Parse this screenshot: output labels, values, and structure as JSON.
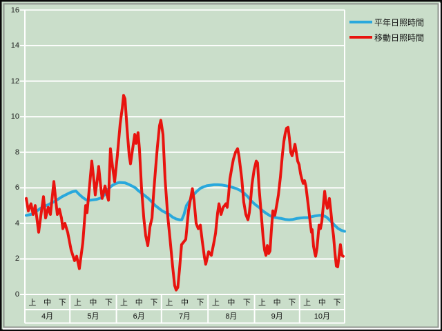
{
  "chart_data": {
    "type": "line",
    "title": "",
    "background_color": "#cadeca",
    "gridline_color": "#ffffff",
    "text_color": "#1b1b1b",
    "grid": true,
    "legend_position": "top-right",
    "y_axis": {
      "min": 0,
      "max": 16,
      "tick_step": 2,
      "tick_labels": [
        "0",
        "2",
        "4",
        "6",
        "8",
        "10",
        "12",
        "14",
        "16"
      ]
    },
    "x_axis": {
      "months": [
        "4月",
        "5月",
        "6月",
        "7月",
        "8月",
        "9月",
        "10月"
      ],
      "period_labels": [
        "上",
        "中",
        "下"
      ],
      "month_boundaries_days": [
        0,
        30,
        61,
        91,
        122,
        153,
        183,
        213
      ],
      "x_units": "days from April 1",
      "y_units": "hours"
    },
    "series": [
      {
        "name": "平年日照時間",
        "color": "#29a8dc",
        "width": 4,
        "points": [
          [
            0.9,
            4.45
          ],
          [
            4,
            4.5
          ],
          [
            6.4,
            4.6
          ],
          [
            11,
            4.88
          ],
          [
            15.6,
            5.05
          ],
          [
            20.2,
            5.25
          ],
          [
            24.8,
            5.5
          ],
          [
            29.4,
            5.7
          ],
          [
            31.7,
            5.78
          ],
          [
            34,
            5.82
          ],
          [
            36.3,
            5.62
          ],
          [
            38.6,
            5.45
          ],
          [
            40.9,
            5.32
          ],
          [
            43.2,
            5.3
          ],
          [
            47.8,
            5.35
          ],
          [
            51.5,
            5.45
          ],
          [
            53.4,
            5.65
          ],
          [
            55.2,
            5.9
          ],
          [
            58,
            6.12
          ],
          [
            60.7,
            6.25
          ],
          [
            63,
            6.3
          ],
          [
            66.7,
            6.28
          ],
          [
            69,
            6.2
          ],
          [
            71.3,
            6.1
          ],
          [
            73.6,
            6.0
          ],
          [
            75.4,
            5.85
          ],
          [
            77.7,
            5.7
          ],
          [
            80,
            5.55
          ],
          [
            82.3,
            5.4
          ],
          [
            84.6,
            5.2
          ],
          [
            86.9,
            5.0
          ],
          [
            89.2,
            4.85
          ],
          [
            91.5,
            4.7
          ],
          [
            93.8,
            4.6
          ],
          [
            96.1,
            4.5
          ],
          [
            98.4,
            4.35
          ],
          [
            100.7,
            4.25
          ],
          [
            103,
            4.2
          ],
          [
            104.5,
            4.2
          ],
          [
            106,
            4.5
          ],
          [
            107.6,
            5.0
          ],
          [
            110,
            5.3
          ],
          [
            112.3,
            5.6
          ],
          [
            114.5,
            5.8
          ],
          [
            116.9,
            5.97
          ],
          [
            119,
            6.05
          ],
          [
            121.5,
            6.12
          ],
          [
            124,
            6.15
          ],
          [
            126.1,
            6.17
          ],
          [
            128.5,
            6.17
          ],
          [
            131,
            6.16
          ],
          [
            133.5,
            6.12
          ],
          [
            136,
            6.08
          ],
          [
            138.5,
            6.02
          ],
          [
            141,
            5.95
          ],
          [
            143.5,
            5.85
          ],
          [
            146,
            5.7
          ],
          [
            148.5,
            5.5
          ],
          [
            151,
            5.25
          ],
          [
            153.5,
            5.05
          ],
          [
            156,
            4.9
          ],
          [
            158.5,
            4.7
          ],
          [
            161,
            4.55
          ],
          [
            163.5,
            4.42
          ],
          [
            166,
            4.35
          ],
          [
            168.5,
            4.3
          ],
          [
            171,
            4.27
          ],
          [
            173.5,
            4.22
          ],
          [
            176,
            4.2
          ],
          [
            178.5,
            4.22
          ],
          [
            181,
            4.27
          ],
          [
            183.5,
            4.3
          ],
          [
            186,
            4.32
          ],
          [
            188.5,
            4.32
          ],
          [
            191,
            4.37
          ],
          [
            193.5,
            4.42
          ],
          [
            196,
            4.45
          ],
          [
            198.5,
            4.45
          ],
          [
            201,
            4.35
          ],
          [
            203.5,
            4.15
          ],
          [
            206,
            3.92
          ],
          [
            208.5,
            3.72
          ],
          [
            211,
            3.6
          ],
          [
            213,
            3.55
          ]
        ]
      },
      {
        "name": "移動日照時間",
        "color": "#e8140f",
        "width": 4,
        "points": [
          [
            0.9,
            5.4
          ],
          [
            2.3,
            4.7
          ],
          [
            4.1,
            5.1
          ],
          [
            5.5,
            4.5
          ],
          [
            6.9,
            5.0
          ],
          [
            9.2,
            3.5
          ],
          [
            10.6,
            4.4
          ],
          [
            12.4,
            5.5
          ],
          [
            13.8,
            4.3
          ],
          [
            15.6,
            4.9
          ],
          [
            17,
            4.5
          ],
          [
            19.3,
            6.35
          ],
          [
            20.7,
            5.2
          ],
          [
            21.6,
            4.5
          ],
          [
            23,
            4.8
          ],
          [
            24.4,
            4.3
          ],
          [
            25.3,
            3.7
          ],
          [
            26.7,
            4.0
          ],
          [
            28.5,
            3.5
          ],
          [
            30.8,
            2.5
          ],
          [
            33.1,
            1.9
          ],
          [
            34.5,
            2.15
          ],
          [
            36.3,
            1.45
          ],
          [
            38.6,
            2.9
          ],
          [
            40.5,
            5.0
          ],
          [
            41.4,
            4.6
          ],
          [
            43.2,
            6.2
          ],
          [
            44.6,
            7.5
          ],
          [
            46,
            6.4
          ],
          [
            46.9,
            5.6
          ],
          [
            48.3,
            6.5
          ],
          [
            49.2,
            7.2
          ],
          [
            50.6,
            6.0
          ],
          [
            51.5,
            5.4
          ],
          [
            53.4,
            6.1
          ],
          [
            54.7,
            5.6
          ],
          [
            55.7,
            5.3
          ],
          [
            57,
            8.2
          ],
          [
            58.4,
            7.2
          ],
          [
            59.8,
            6.35
          ],
          [
            61.6,
            7.8
          ],
          [
            63.5,
            9.6
          ],
          [
            64.9,
            10.5
          ],
          [
            65.8,
            11.2
          ],
          [
            66.7,
            11.0
          ],
          [
            68.1,
            9.3
          ],
          [
            69.5,
            7.8
          ],
          [
            70.4,
            7.35
          ],
          [
            71.8,
            8.2
          ],
          [
            73.2,
            9.0
          ],
          [
            74.1,
            8.5
          ],
          [
            75.4,
            9.1
          ],
          [
            76.3,
            8.2
          ],
          [
            77.7,
            6.0
          ],
          [
            79.2,
            4.3
          ],
          [
            80.5,
            3.3
          ],
          [
            81.9,
            2.75
          ],
          [
            83.3,
            3.8
          ],
          [
            84.7,
            4.3
          ],
          [
            85.6,
            5.5
          ],
          [
            87,
            7.0
          ],
          [
            88.3,
            8.3
          ],
          [
            89.7,
            9.5
          ],
          [
            90.6,
            9.8
          ],
          [
            92,
            9.0
          ],
          [
            93.4,
            6.5
          ],
          [
            95.2,
            4.4
          ],
          [
            96.6,
            3.2
          ],
          [
            98.4,
            1.6
          ],
          [
            99.8,
            0.5
          ],
          [
            100.8,
            0.25
          ],
          [
            101.9,
            0.4
          ],
          [
            103,
            1.4
          ],
          [
            104.4,
            2.8
          ],
          [
            105.8,
            2.95
          ],
          [
            107.2,
            3.1
          ],
          [
            109,
            4.7
          ],
          [
            110.4,
            5.4
          ],
          [
            111.6,
            5.95
          ],
          [
            112.7,
            5.3
          ],
          [
            114.1,
            4.0
          ],
          [
            115.5,
            3.7
          ],
          [
            116.9,
            3.9
          ],
          [
            118.2,
            3.0
          ],
          [
            119.6,
            2.1
          ],
          [
            120.5,
            1.7
          ],
          [
            122.4,
            2.4
          ],
          [
            124.2,
            2.2
          ],
          [
            126.1,
            3.0
          ],
          [
            127,
            3.45
          ],
          [
            128.4,
            4.6
          ],
          [
            129.3,
            5.1
          ],
          [
            130.7,
            4.5
          ],
          [
            132.1,
            4.9
          ],
          [
            133,
            5.0
          ],
          [
            133.9,
            5.1
          ],
          [
            134.8,
            4.9
          ],
          [
            135.7,
            5.6
          ],
          [
            136.6,
            6.5
          ],
          [
            138,
            7.2
          ],
          [
            138.9,
            7.6
          ],
          [
            140.3,
            8.0
          ],
          [
            141.7,
            8.2
          ],
          [
            142.6,
            7.8
          ],
          [
            143.5,
            7.2
          ],
          [
            144.5,
            6.5
          ],
          [
            145.8,
            5.2
          ],
          [
            147.2,
            4.5
          ],
          [
            148.6,
            4.2
          ],
          [
            149.5,
            4.6
          ],
          [
            150.4,
            5.3
          ],
          [
            151.3,
            6.2
          ],
          [
            152.7,
            7.0
          ],
          [
            154.1,
            7.5
          ],
          [
            155,
            7.4
          ],
          [
            156,
            6.0
          ],
          [
            157.4,
            4.6
          ],
          [
            158.7,
            3.2
          ],
          [
            159.7,
            2.5
          ],
          [
            160.6,
            2.2
          ],
          [
            161.5,
            2.75
          ],
          [
            162.4,
            2.3
          ],
          [
            163.3,
            2.45
          ],
          [
            164.2,
            3.6
          ],
          [
            165.2,
            4.7
          ],
          [
            166.5,
            4.45
          ],
          [
            167.9,
            5.1
          ],
          [
            168.9,
            5.6
          ],
          [
            170.2,
            6.6
          ],
          [
            171.6,
            7.9
          ],
          [
            172.5,
            8.6
          ],
          [
            173.4,
            9.05
          ],
          [
            174.3,
            9.35
          ],
          [
            175.3,
            9.4
          ],
          [
            176.2,
            8.8
          ],
          [
            177.1,
            8.0
          ],
          [
            178,
            7.8
          ],
          [
            179,
            8.1
          ],
          [
            179.9,
            8.45
          ],
          [
            180.8,
            8.0
          ],
          [
            181.7,
            7.5
          ],
          [
            182.7,
            7.3
          ],
          [
            183.6,
            6.8
          ],
          [
            184.5,
            6.5
          ],
          [
            185.4,
            6.25
          ],
          [
            186.3,
            6.4
          ],
          [
            187.2,
            6.1
          ],
          [
            188.2,
            5.4
          ],
          [
            189.1,
            4.8
          ],
          [
            190,
            4.1
          ],
          [
            190.9,
            3.5
          ],
          [
            191.4,
            3.65
          ],
          [
            192.3,
            2.7
          ],
          [
            193.2,
            2.3
          ],
          [
            193.7,
            2.15
          ],
          [
            194.6,
            2.6
          ],
          [
            196,
            3.9
          ],
          [
            196.9,
            3.7
          ],
          [
            197.8,
            4.1
          ],
          [
            198.7,
            4.9
          ],
          [
            199.7,
            5.8
          ],
          [
            200.6,
            5.2
          ],
          [
            201.5,
            4.85
          ],
          [
            202.4,
            5.2
          ],
          [
            202.9,
            5.4
          ],
          [
            203.8,
            4.7
          ],
          [
            204.7,
            3.9
          ],
          [
            205.6,
            3.3
          ],
          [
            206.6,
            2.3
          ],
          [
            207.5,
            1.6
          ],
          [
            208.4,
            1.55
          ],
          [
            209.3,
            2.2
          ],
          [
            210.2,
            2.8
          ],
          [
            211.2,
            2.2
          ],
          [
            212.1,
            2.15
          ]
        ]
      }
    ]
  },
  "legend": {
    "items": [
      {
        "label": "平年日照時間"
      },
      {
        "label": "移動日照時間"
      }
    ]
  }
}
